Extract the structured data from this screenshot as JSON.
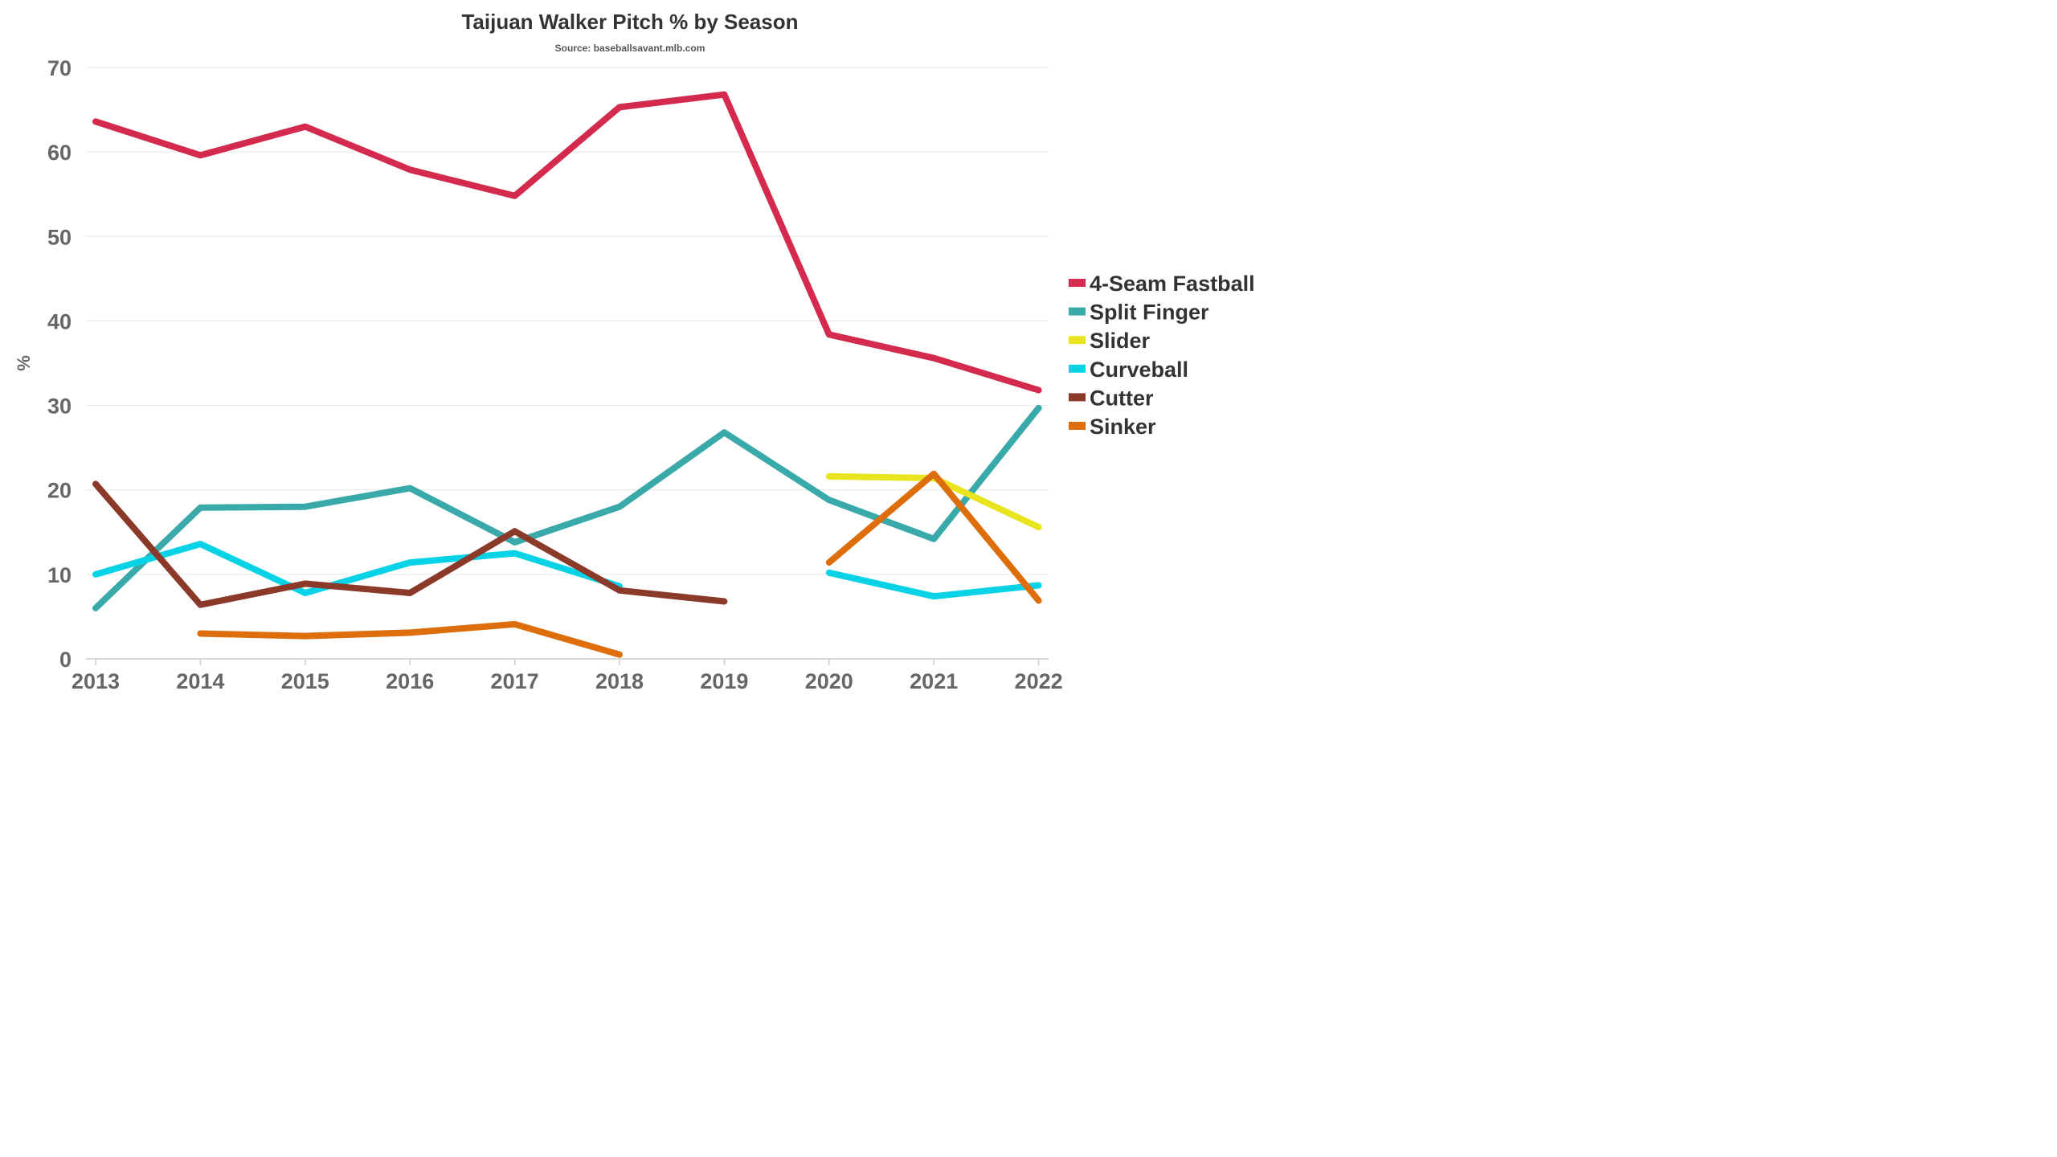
{
  "chart_data": {
    "type": "line",
    "title": "Taijuan Walker Pitch % by Season",
    "subtitle": "Source: baseballsavant.mlb.com",
    "xlabel": "",
    "ylabel": "%",
    "x": [
      "2013",
      "2014",
      "2015",
      "2016",
      "2017",
      "2018",
      "2019",
      "2020",
      "2021",
      "2022"
    ],
    "ylim": [
      0,
      70
    ],
    "yticks": [
      "0",
      "10",
      "20",
      "30",
      "40",
      "50",
      "60",
      "70"
    ],
    "grid": true,
    "legend_position": "right",
    "series": [
      {
        "name": "4-Seam Fastball",
        "color": "#d32a4e",
        "values": [
          63.6,
          59.6,
          63.0,
          57.9,
          54.8,
          65.3,
          66.8,
          38.4,
          35.6,
          31.8
        ]
      },
      {
        "name": "Split Finger",
        "color": "#3aa9a9",
        "values": [
          6.0,
          17.9,
          18.0,
          20.2,
          13.8,
          18.0,
          26.8,
          18.8,
          14.2,
          29.7
        ]
      },
      {
        "name": "Slider",
        "color": "#e8e51e",
        "values": [
          null,
          null,
          null,
          null,
          null,
          null,
          null,
          21.6,
          21.4,
          15.6
        ]
      },
      {
        "name": "Curveball",
        "color": "#08d3e6",
        "values": [
          10.0,
          13.6,
          7.8,
          11.4,
          12.5,
          8.6,
          null,
          10.2,
          7.4,
          8.7
        ]
      },
      {
        "name": "Cutter",
        "color": "#8b3a2a",
        "values": [
          20.7,
          6.4,
          8.9,
          7.8,
          15.1,
          8.1,
          6.8,
          null,
          null,
          null
        ]
      },
      {
        "name": "Sinker",
        "color": "#de6e0c",
        "values": [
          null,
          3.0,
          2.7,
          3.1,
          4.1,
          0.5,
          null,
          11.4,
          21.9,
          6.9
        ]
      }
    ]
  }
}
